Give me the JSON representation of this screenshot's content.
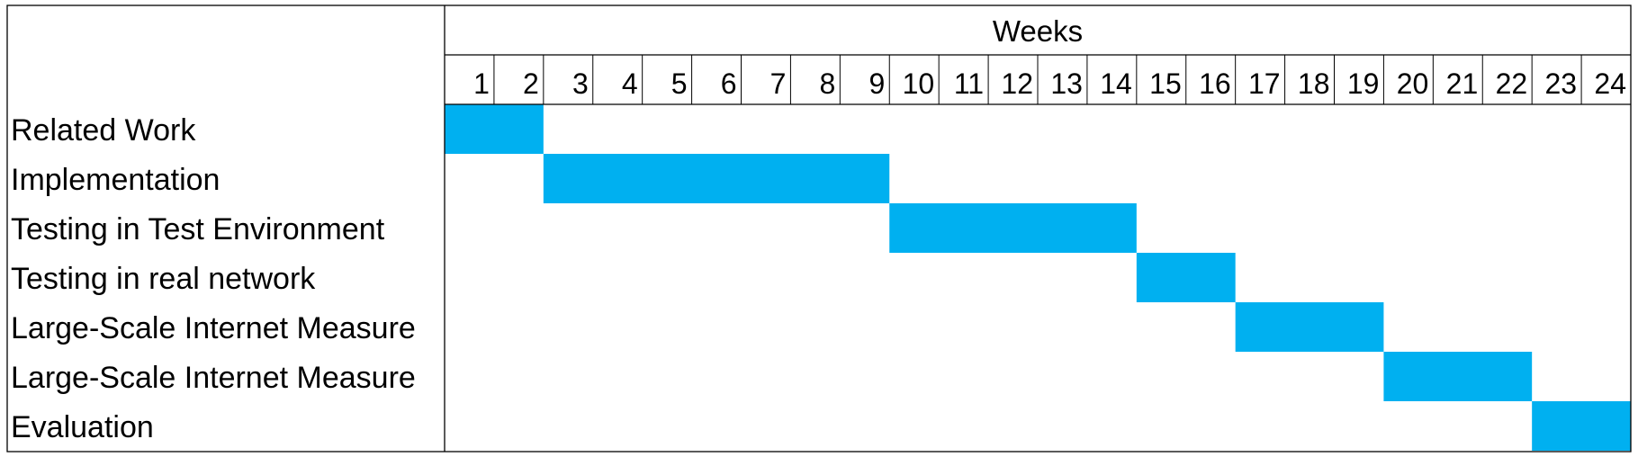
{
  "chart_data": {
    "type": "bar",
    "subtype": "gantt",
    "header": "Weeks",
    "weeks": [
      "1",
      "2",
      "3",
      "4",
      "5",
      "6",
      "7",
      "8",
      "9",
      "10",
      "11",
      "12",
      "13",
      "14",
      "15",
      "16",
      "17",
      "18",
      "19",
      "20",
      "21",
      "22",
      "23",
      "24"
    ],
    "tasks": [
      {
        "label": "Related Work",
        "start_week": 1,
        "end_week": 2
      },
      {
        "label": "Implementation",
        "start_week": 3,
        "end_week": 9
      },
      {
        "label": "Testing in Test Environment",
        "start_week": 10,
        "end_week": 14
      },
      {
        "label": "Testing in real network",
        "start_week": 15,
        "end_week": 16
      },
      {
        "label": "Large-Scale Internet Measure",
        "start_week": 17,
        "end_week": 19
      },
      {
        "label": "Large-Scale Internet Measure",
        "start_week": 20,
        "end_week": 22
      },
      {
        "label": "Evaluation",
        "start_week": 23,
        "end_week": 24
      }
    ],
    "bar_color": "#00B0F0",
    "grid": "header-only"
  }
}
